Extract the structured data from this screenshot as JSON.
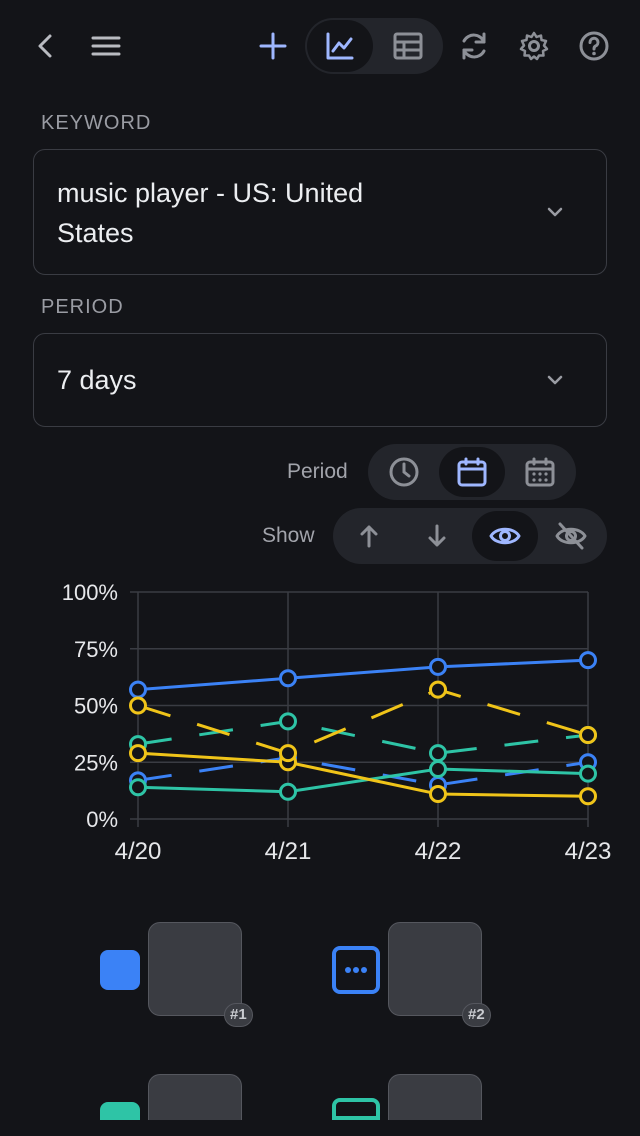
{
  "toolbar": {
    "back_icon": "chevron-left-icon",
    "menu_icon": "hamburger-menu-icon",
    "add_icon": "plus-icon",
    "chart_view_icon": "line-chart-icon",
    "table_view_icon": "table-icon",
    "refresh_icon": "refresh-icon",
    "settings_icon": "gear-icon",
    "help_icon": "question-circle-icon"
  },
  "keyword": {
    "label": "KEYWORD",
    "value_line1": "music player - US: United",
    "value_line2": "States"
  },
  "period": {
    "label": "PERIOD",
    "value": "7 days"
  },
  "controls": {
    "period_label": "Period",
    "period_options": [
      "clock-icon",
      "calendar-icon",
      "calendar-grid-icon"
    ],
    "period_selected": 1,
    "show_label": "Show",
    "show_options": [
      "arrow-up-icon",
      "arrow-down-icon",
      "eye-icon",
      "eye-off-icon"
    ],
    "show_selected": 2
  },
  "colors": {
    "blue": "#3b82f6",
    "teal": "#2ec4a6",
    "yellow": "#f0c419",
    "grid": "#3a3c43",
    "axis_text": "#e6e7ea"
  },
  "chart_data": {
    "type": "line",
    "x": [
      "4/20",
      "4/21",
      "4/22",
      "4/23"
    ],
    "y_ticks": [
      "0%",
      "25%",
      "50%",
      "75%",
      "100%"
    ],
    "ylim": [
      0,
      100
    ],
    "grid": true,
    "series": [
      {
        "color": "#3b82f6",
        "style": "solid",
        "values": [
          57,
          62,
          67,
          70
        ]
      },
      {
        "color": "#3b82f6",
        "style": "dashed",
        "values": [
          17,
          27,
          15,
          25
        ]
      },
      {
        "color": "#2ec4a6",
        "style": "solid",
        "values": [
          14,
          12,
          22,
          20
        ]
      },
      {
        "color": "#2ec4a6",
        "style": "dashed",
        "values": [
          33,
          43,
          29,
          37
        ]
      },
      {
        "color": "#f0c419",
        "style": "solid",
        "values": [
          29,
          25,
          11,
          10
        ]
      },
      {
        "color": "#f0c419",
        "style": "dashed",
        "values": [
          50,
          29,
          57,
          37
        ]
      }
    ]
  },
  "legend": {
    "items": [
      {
        "swatch": "#3b82f6",
        "style": "filled",
        "rank": "#1"
      },
      {
        "swatch": "#3b82f6",
        "style": "outlined-dots",
        "rank": "#2"
      },
      {
        "swatch": "#2ec4a6",
        "style": "filled",
        "rank": ""
      },
      {
        "swatch": "#2ec4a6",
        "style": "outlined-dots",
        "rank": ""
      }
    ]
  }
}
